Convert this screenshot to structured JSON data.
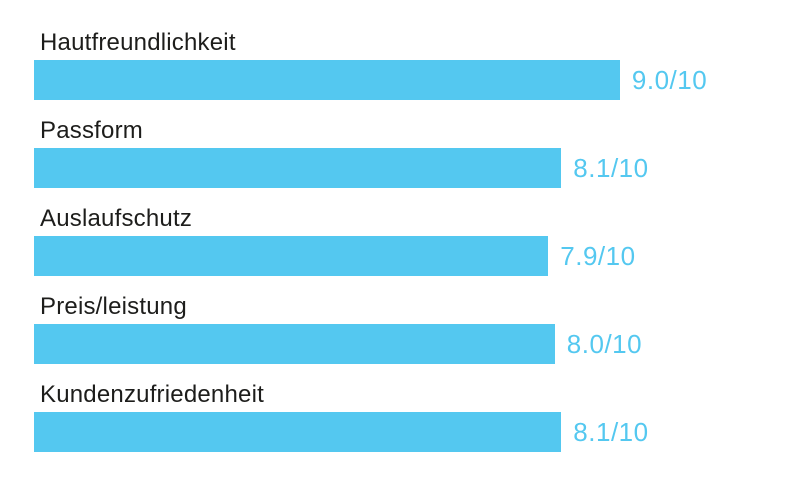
{
  "chart_data": {
    "type": "bar",
    "orientation": "horizontal",
    "title": "",
    "xlabel": "",
    "ylabel": "",
    "xlim": [
      0,
      10
    ],
    "grid": false,
    "legend": false,
    "categories": [
      "Hautfreundlichkeit",
      "Passform",
      "Auslaufschutz",
      "Preis/leistung",
      "Kundenzufriedenheit"
    ],
    "values": [
      9.0,
      8.1,
      7.9,
      8.0,
      8.1
    ],
    "value_labels": [
      "9.0/10",
      "8.1/10",
      "7.9/10",
      "8.0/10",
      "8.1/10"
    ],
    "bar_color": "#54c8f0",
    "value_text_color": "#54c8f0",
    "category_label_color": "#1d1d1b",
    "background_color": "#ffffff"
  }
}
